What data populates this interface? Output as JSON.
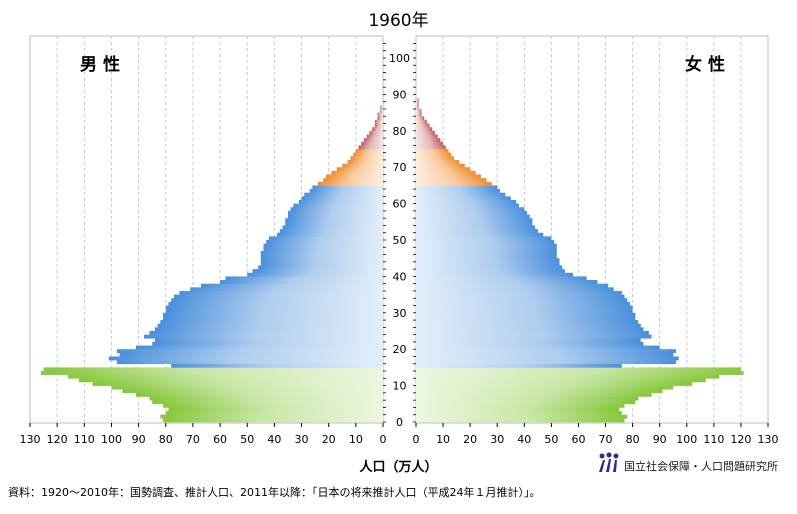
{
  "chart_data": {
    "type": "bar",
    "title": "1960年",
    "left_label": "男 性",
    "right_label": "女 性",
    "xlabel": "人口（万人）",
    "xlim": [
      0,
      130
    ],
    "x_ticks": [
      130,
      120,
      110,
      100,
      90,
      80,
      70,
      60,
      50,
      40,
      30,
      20,
      10,
      0
    ],
    "age_ticks": [
      0,
      10,
      20,
      30,
      40,
      50,
      60,
      70,
      80,
      90,
      100
    ],
    "ages": "0-99 (single years)",
    "age_groups": [
      {
        "name": "0-14",
        "color": "#86c73a"
      },
      {
        "name": "15-64",
        "color": "#4a8fdc"
      },
      {
        "name": "65-74",
        "color": "#f08c2a"
      },
      {
        "name": "75+",
        "color": "#c0605f"
      }
    ],
    "series": [
      {
        "name": "男 性",
        "values": [
          81,
          82,
          80,
          79,
          81,
          85,
          86,
          91,
          96,
          100,
          107,
          112,
          116,
          126,
          125,
          78,
          98,
          101,
          97,
          98,
          91,
          85,
          84,
          88,
          86,
          84,
          83,
          82,
          81,
          81,
          80,
          80,
          79,
          78,
          77,
          75,
          71,
          67,
          60,
          58,
          50,
          48,
          46,
          45,
          45,
          45,
          45,
          44,
          44,
          43,
          42,
          39,
          38,
          37,
          36,
          36,
          35,
          35,
          34,
          33,
          31,
          30,
          29,
          27,
          26,
          24,
          22,
          21,
          19,
          17,
          15,
          13,
          12,
          11,
          10,
          9,
          8,
          7,
          6,
          5,
          4,
          3,
          3,
          2,
          2,
          1,
          1,
          0,
          0,
          0,
          0,
          0,
          0,
          0,
          0,
          0,
          0,
          0,
          0,
          0
        ]
      },
      {
        "name": "女 性",
        "values": [
          77,
          78,
          76,
          75,
          77,
          81,
          82,
          87,
          91,
          95,
          102,
          107,
          112,
          121,
          120,
          76,
          96,
          97,
          95,
          96,
          90,
          84,
          83,
          87,
          86,
          84,
          83,
          82,
          81,
          81,
          80,
          80,
          79,
          78,
          77,
          76,
          73,
          71,
          67,
          63,
          58,
          55,
          54,
          53,
          53,
          52,
          52,
          52,
          52,
          51,
          50,
          47,
          45,
          44,
          43,
          43,
          42,
          41,
          40,
          38,
          37,
          35,
          33,
          31,
          30,
          28,
          26,
          24,
          22,
          20,
          18,
          16,
          14,
          13,
          12,
          11,
          10,
          9,
          8,
          7,
          6,
          5,
          4,
          3,
          2,
          2,
          1,
          1,
          1,
          0,
          0,
          0,
          0,
          0,
          0,
          0,
          0,
          0,
          0,
          0
        ]
      }
    ]
  },
  "footer": {
    "source": "資料：1920〜2010年：国勢調査、推計人口、2011年以降：「日本の将来推計人口（平成24年１月推計）」。",
    "org": "国立社会保障・人口問題研究所"
  }
}
